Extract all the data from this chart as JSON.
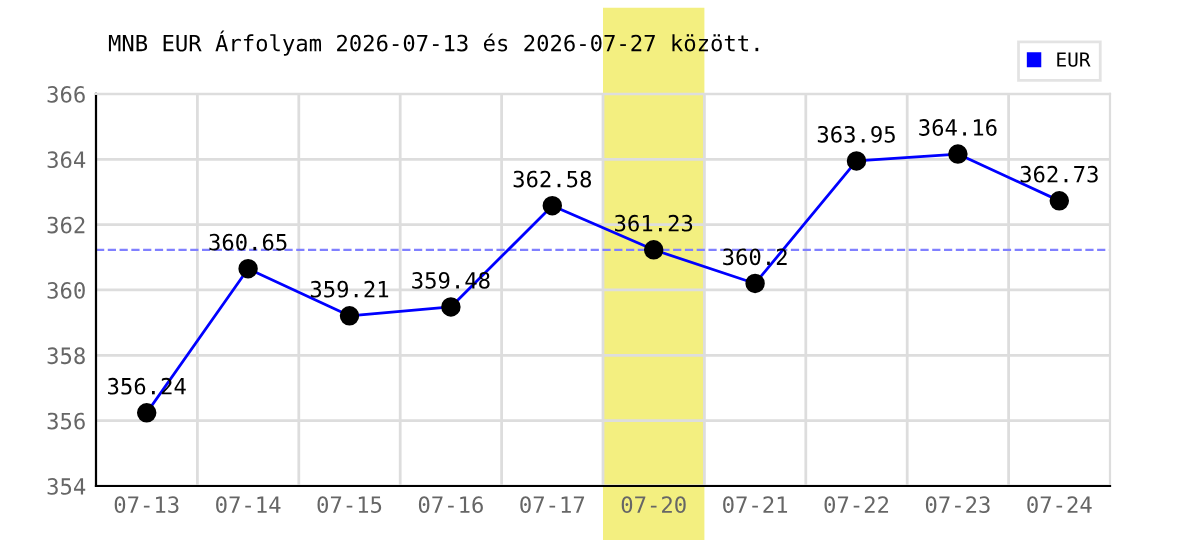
{
  "chart_data": {
    "type": "line",
    "title": "MNB EUR Árfolyam 2026-07-13 és 2026-07-27 között.",
    "categories": [
      "07-13",
      "07-14",
      "07-15",
      "07-16",
      "07-17",
      "07-20",
      "07-21",
      "07-22",
      "07-23",
      "07-24"
    ],
    "series": [
      {
        "name": "EUR",
        "color": "#0000ff",
        "values": [
          356.24,
          360.65,
          359.21,
          359.48,
          362.58,
          361.23,
          360.2,
          363.95,
          364.16,
          362.73
        ]
      }
    ],
    "ylim": [
      354,
      366
    ],
    "yticks": [
      354,
      356,
      358,
      360,
      362,
      364,
      366
    ],
    "ref_lines": [
      {
        "axis": "y",
        "value": 361.23,
        "color": "#8080ff",
        "line_style": "dashed"
      }
    ],
    "bands": [
      {
        "axis": "x",
        "from": "07-20",
        "to": "07-20",
        "color": "#f3ef80"
      }
    ],
    "grid": true,
    "legend": "top right",
    "marker": "circle",
    "data_labels": true
  }
}
